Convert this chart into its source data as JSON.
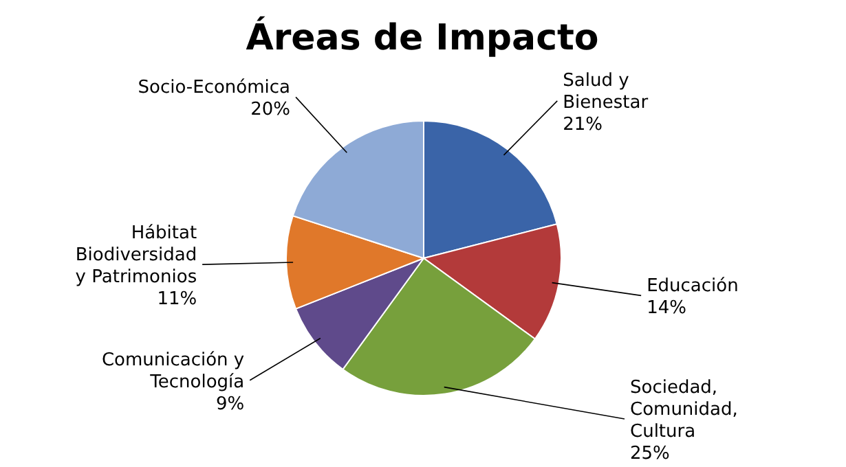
{
  "chart_data": {
    "type": "pie",
    "title": "Áreas de Impacto",
    "categories": [
      "Salud y Bienestar",
      "Educación",
      "Sociedad, Comunidad, Cultura",
      "Comunicación y Tecnología",
      "Hábitat Biodiversidad y Patrimonios",
      "Socio-Económica"
    ],
    "values": [
      21,
      14,
      25,
      9,
      11,
      20
    ],
    "value_labels": [
      "21%",
      "14%",
      "25%",
      "9%",
      "11%",
      "20%"
    ],
    "colors": [
      "#3a64a8",
      "#b33a3a",
      "#77a03c",
      "#5f4a8b",
      "#e0782a",
      "#8eaad6"
    ]
  }
}
